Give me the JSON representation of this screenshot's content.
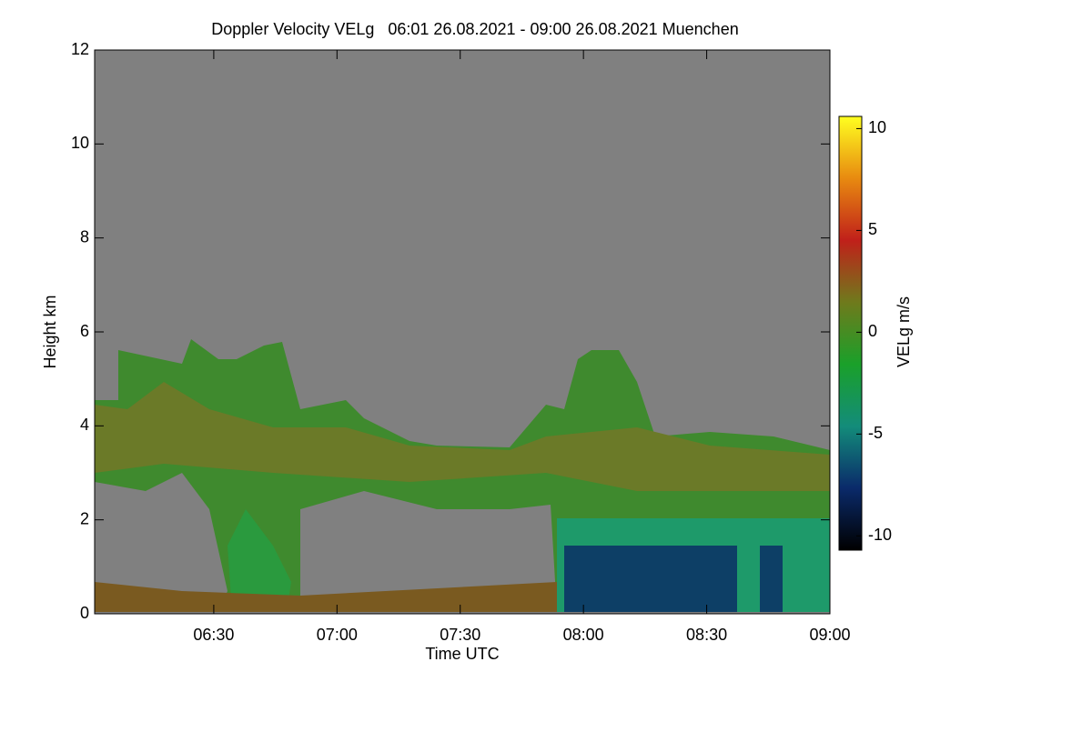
{
  "chart_data": {
    "type": "heatmap",
    "title": "Doppler Velocity VELg   06:01 26.08.2021 - 09:00 26.08.2021 Muenchen",
    "x_label": "Time UTC",
    "y_label": "Height km",
    "xlim": [
      "06:01",
      "09:00"
    ],
    "xticks": [
      "06:30",
      "07:00",
      "07:30",
      "08:00",
      "08:30",
      "09:00"
    ],
    "ylim": [
      0,
      12
    ],
    "yticks": [
      0,
      2,
      4,
      6,
      8,
      10,
      12
    ],
    "colorbar": {
      "label": "VELg m/s",
      "lim": [
        -10.7,
        10.6
      ],
      "ticks": [
        -10,
        -5,
        0,
        5,
        10
      ],
      "colors": [
        "#000000",
        "#0a2a6a",
        "#138c7a",
        "#1aa02a",
        "#6f7a1c",
        "#c0201a",
        "#e88a10",
        "#ffff20"
      ]
    }
  }
}
